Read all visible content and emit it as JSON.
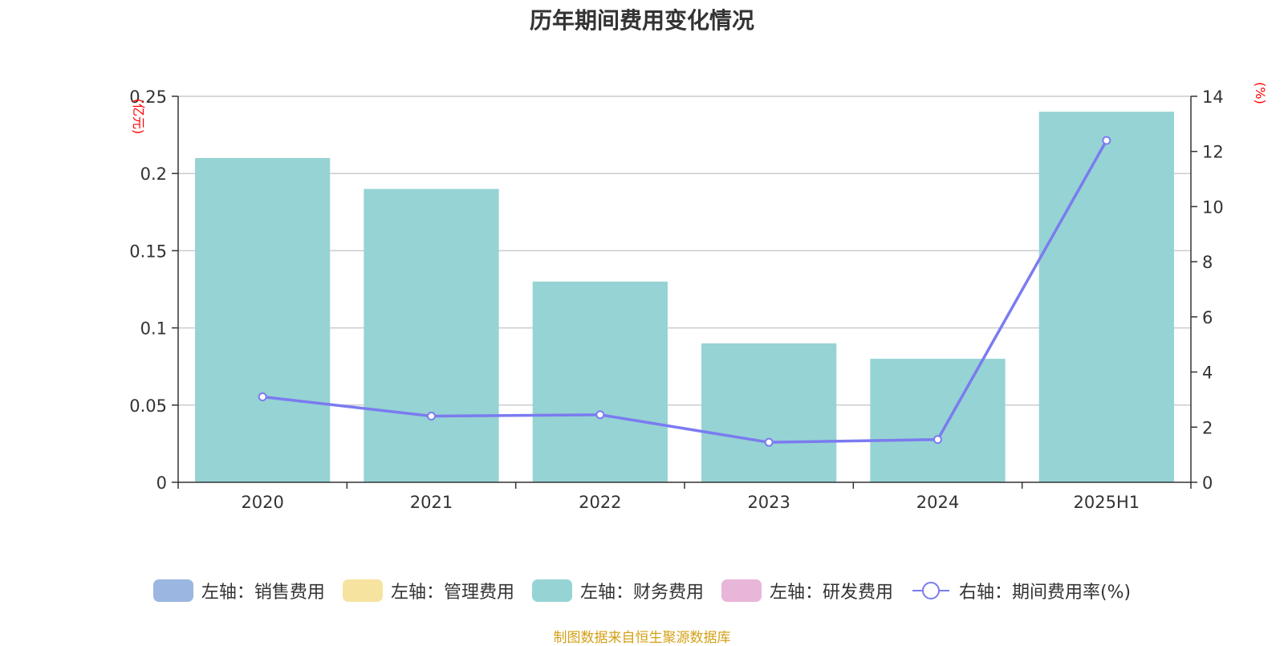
{
  "chart_data": {
    "type": "bar",
    "title": "历年期间费用变化情况",
    "categories": [
      "2020",
      "2021",
      "2022",
      "2023",
      "2024",
      "2025H1"
    ],
    "left_axis": {
      "unit": "(亿元)",
      "ylim": [
        0,
        0.25
      ],
      "ticks": [
        "0",
        "0.05",
        "0.1",
        "0.15",
        "0.2",
        "0.25"
      ],
      "tick_values": [
        0,
        0.05,
        0.1,
        0.15,
        0.2,
        0.25
      ]
    },
    "right_axis": {
      "unit": "(%)",
      "ylim": [
        0,
        14
      ],
      "ticks": [
        "0",
        "2",
        "4",
        "6",
        "8",
        "10",
        "12",
        "14"
      ],
      "tick_values": [
        0,
        2,
        4,
        6,
        8,
        10,
        12,
        14
      ]
    },
    "series": [
      {
        "name": "左轴：销售费用",
        "type": "bar",
        "axis": "left",
        "color": "#9bb6e0",
        "values": [
          null,
          null,
          null,
          null,
          null,
          null
        ]
      },
      {
        "name": "左轴：管理费用",
        "type": "bar",
        "axis": "left",
        "color": "#f7e3a0",
        "values": [
          null,
          null,
          null,
          null,
          null,
          null
        ]
      },
      {
        "name": "左轴：财务费用",
        "type": "bar",
        "axis": "left",
        "color": "#96d3d4",
        "values": [
          0.21,
          0.19,
          0.13,
          0.09,
          0.08,
          0.24
        ]
      },
      {
        "name": "左轴：研发费用",
        "type": "bar",
        "axis": "left",
        "color": "#e8b6d8",
        "values": [
          null,
          null,
          null,
          null,
          null,
          null
        ]
      },
      {
        "name": "右轴：期间费用率(%)",
        "type": "line",
        "axis": "right",
        "color": "#7b7bf0",
        "values": [
          3.1,
          2.4,
          2.45,
          1.45,
          1.55,
          12.4
        ]
      }
    ],
    "grid": true,
    "legend_position": "bottom"
  },
  "footer": "制图数据来自恒生聚源数据库"
}
